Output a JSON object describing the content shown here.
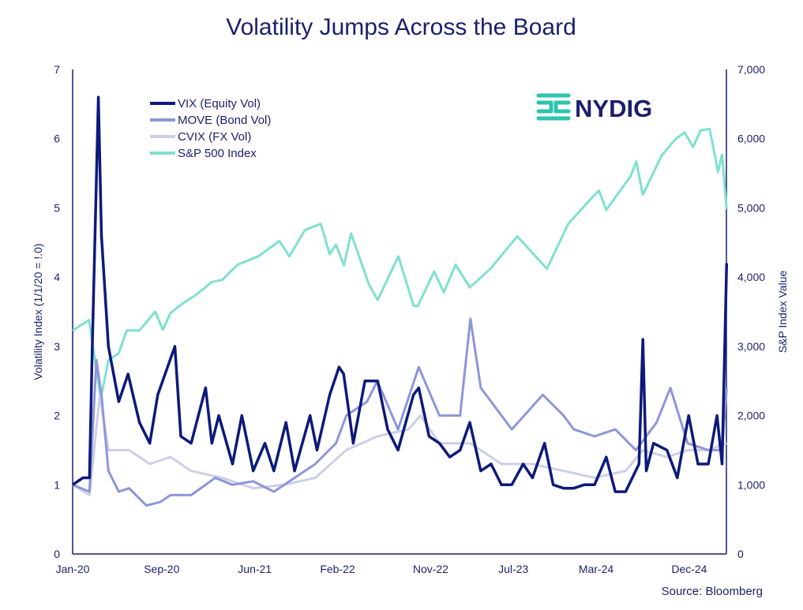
{
  "chart_data": {
    "type": "line",
    "title": "Volatility Jumps Across the Board",
    "ylabel": "Volatility Index  (1/1/20 = !.0)",
    "y2label": "S&P Index Value",
    "source": "Source: Bloomberg",
    "logo": "NYDIG",
    "ylim": [
      0,
      7
    ],
    "y2lim": [
      0,
      7000
    ],
    "yticks": [
      "0",
      "1",
      "2",
      "3",
      "4",
      "5",
      "6",
      "7"
    ],
    "y2ticks": [
      "0",
      "1,000",
      "2,000",
      "3,000",
      "4,000",
      "5,000",
      "6,000",
      "7,000"
    ],
    "xticks": [
      {
        "label": "Jan-20",
        "date": "2020-01"
      },
      {
        "label": "Sep-20",
        "date": "2020-09"
      },
      {
        "label": "Jun-21",
        "date": "2021-06"
      },
      {
        "label": "Feb-22",
        "date": "2022-02"
      },
      {
        "label": "Nov-22",
        "date": "2022-11"
      },
      {
        "label": "Jul-23",
        "date": "2023-07"
      },
      {
        "label": "Mar-24",
        "date": "2024-03"
      },
      {
        "label": "Dec-24",
        "date": "2024-12"
      }
    ],
    "grid": false,
    "legend": "top-left",
    "series": [
      {
        "name": "VIX (Equity Vol)",
        "axis": "left",
        "color": "#0d1a7a",
        "points": [
          [
            "2020-01-01",
            1.0
          ],
          [
            "2020-02-01",
            1.1
          ],
          [
            "2020-02-20",
            1.1
          ],
          [
            "2020-02-28",
            2.9
          ],
          [
            "2020-03-16",
            6.6
          ],
          [
            "2020-03-25",
            4.6
          ],
          [
            "2020-04-15",
            3.0
          ],
          [
            "2020-05-15",
            2.2
          ],
          [
            "2020-06-12",
            2.6
          ],
          [
            "2020-07-15",
            1.9
          ],
          [
            "2020-08-15",
            1.6
          ],
          [
            "2020-09-08",
            2.3
          ],
          [
            "2020-10-28",
            3.0
          ],
          [
            "2020-11-15",
            1.7
          ],
          [
            "2020-12-15",
            1.6
          ],
          [
            "2021-01-27",
            2.4
          ],
          [
            "2021-02-15",
            1.6
          ],
          [
            "2021-03-05",
            2.0
          ],
          [
            "2021-04-15",
            1.3
          ],
          [
            "2021-05-12",
            2.0
          ],
          [
            "2021-06-15",
            1.2
          ],
          [
            "2021-07-19",
            1.6
          ],
          [
            "2021-08-15",
            1.2
          ],
          [
            "2021-09-20",
            1.9
          ],
          [
            "2021-10-15",
            1.2
          ],
          [
            "2021-11-30",
            2.0
          ],
          [
            "2021-12-20",
            1.5
          ],
          [
            "2022-01-27",
            2.3
          ],
          [
            "2022-02-24",
            2.7
          ],
          [
            "2022-03-07",
            2.6
          ],
          [
            "2022-04-05",
            1.6
          ],
          [
            "2022-05-09",
            2.5
          ],
          [
            "2022-06-16",
            2.5
          ],
          [
            "2022-07-15",
            1.8
          ],
          [
            "2022-08-15",
            1.5
          ],
          [
            "2022-09-30",
            2.3
          ],
          [
            "2022-10-15",
            2.4
          ],
          [
            "2022-11-15",
            1.7
          ],
          [
            "2022-12-15",
            1.6
          ],
          [
            "2023-01-15",
            1.4
          ],
          [
            "2023-02-15",
            1.5
          ],
          [
            "2023-03-13",
            1.9
          ],
          [
            "2023-04-15",
            1.2
          ],
          [
            "2023-05-15",
            1.3
          ],
          [
            "2023-06-15",
            1.0
          ],
          [
            "2023-07-15",
            1.0
          ],
          [
            "2023-08-18",
            1.3
          ],
          [
            "2023-09-15",
            1.1
          ],
          [
            "2023-10-20",
            1.6
          ],
          [
            "2023-11-15",
            1.0
          ],
          [
            "2023-12-15",
            0.95
          ],
          [
            "2024-01-15",
            0.95
          ],
          [
            "2024-02-15",
            1.0
          ],
          [
            "2024-03-15",
            1.0
          ],
          [
            "2024-04-19",
            1.4
          ],
          [
            "2024-05-15",
            0.9
          ],
          [
            "2024-06-15",
            0.9
          ],
          [
            "2024-07-24",
            1.3
          ],
          [
            "2024-08-05",
            3.1
          ],
          [
            "2024-08-15",
            1.2
          ],
          [
            "2024-09-06",
            1.6
          ],
          [
            "2024-10-15",
            1.5
          ],
          [
            "2024-11-15",
            1.1
          ],
          [
            "2024-12-18",
            2.0
          ],
          [
            "2025-01-15",
            1.3
          ],
          [
            "2025-02-15",
            1.3
          ],
          [
            "2025-03-10",
            2.0
          ],
          [
            "2025-03-25",
            1.3
          ],
          [
            "2025-04-08",
            4.2
          ]
        ]
      },
      {
        "name": "MOVE (Bond Vol)",
        "axis": "left",
        "color": "#8e96d8",
        "points": [
          [
            "2020-01-01",
            1.0
          ],
          [
            "2020-02-20",
            0.9
          ],
          [
            "2020-03-10",
            2.8
          ],
          [
            "2020-03-25",
            2.3
          ],
          [
            "2020-04-15",
            1.2
          ],
          [
            "2020-05-15",
            0.9
          ],
          [
            "2020-06-15",
            0.95
          ],
          [
            "2020-08-05",
            0.7
          ],
          [
            "2020-09-15",
            0.75
          ],
          [
            "2020-10-15",
            0.85
          ],
          [
            "2020-12-15",
            0.85
          ],
          [
            "2021-02-25",
            1.1
          ],
          [
            "2021-04-15",
            1.0
          ],
          [
            "2021-06-15",
            1.05
          ],
          [
            "2021-08-15",
            0.9
          ],
          [
            "2021-10-15",
            1.1
          ],
          [
            "2021-12-15",
            1.3
          ],
          [
            "2022-02-15",
            1.6
          ],
          [
            "2022-03-15",
            2.0
          ],
          [
            "2022-05-15",
            2.2
          ],
          [
            "2022-06-15",
            2.5
          ],
          [
            "2022-08-15",
            1.8
          ],
          [
            "2022-10-15",
            2.7
          ],
          [
            "2022-12-15",
            2.0
          ],
          [
            "2023-02-15",
            2.0
          ],
          [
            "2023-03-15",
            3.4
          ],
          [
            "2023-04-15",
            2.4
          ],
          [
            "2023-05-15",
            2.2
          ],
          [
            "2023-07-15",
            1.8
          ],
          [
            "2023-10-15",
            2.3
          ],
          [
            "2023-12-15",
            2.0
          ],
          [
            "2024-01-15",
            1.8
          ],
          [
            "2024-03-15",
            1.7
          ],
          [
            "2024-05-15",
            1.8
          ],
          [
            "2024-07-15",
            1.5
          ],
          [
            "2024-09-15",
            1.9
          ],
          [
            "2024-10-25",
            2.4
          ],
          [
            "2024-12-15",
            1.6
          ],
          [
            "2025-02-15",
            1.5
          ],
          [
            "2025-03-25",
            1.5
          ],
          [
            "2025-04-08",
            2.4
          ]
        ]
      },
      {
        "name": "CVIX (FX Vol)",
        "axis": "left",
        "color": "#ccd0e6",
        "points": [
          [
            "2020-01-01",
            1.0
          ],
          [
            "2020-02-20",
            0.85
          ],
          [
            "2020-03-20",
            2.3
          ],
          [
            "2020-04-15",
            1.5
          ],
          [
            "2020-06-15",
            1.5
          ],
          [
            "2020-08-15",
            1.3
          ],
          [
            "2020-10-15",
            1.4
          ],
          [
            "2020-12-15",
            1.2
          ],
          [
            "2021-03-15",
            1.1
          ],
          [
            "2021-06-15",
            0.95
          ],
          [
            "2021-09-15",
            1.0
          ],
          [
            "2021-12-15",
            1.1
          ],
          [
            "2022-03-15",
            1.5
          ],
          [
            "2022-06-15",
            1.7
          ],
          [
            "2022-09-15",
            1.8
          ],
          [
            "2022-10-20",
            2.0
          ],
          [
            "2022-12-15",
            1.6
          ],
          [
            "2023-03-15",
            1.6
          ],
          [
            "2023-06-15",
            1.3
          ],
          [
            "2023-09-15",
            1.3
          ],
          [
            "2023-12-15",
            1.2
          ],
          [
            "2024-03-15",
            1.1
          ],
          [
            "2024-06-15",
            1.2
          ],
          [
            "2024-08-05",
            1.5
          ],
          [
            "2024-10-15",
            1.4
          ],
          [
            "2024-12-15",
            1.5
          ],
          [
            "2025-02-15",
            1.5
          ],
          [
            "2025-04-08",
            1.6
          ]
        ]
      },
      {
        "name": "S&P 500 Index",
        "axis": "right",
        "color": "#7fe0d0",
        "points": [
          [
            "2020-01-01",
            3230
          ],
          [
            "2020-02-19",
            3380
          ],
          [
            "2020-03-23",
            2240
          ],
          [
            "2020-04-15",
            2800
          ],
          [
            "2020-05-15",
            2900
          ],
          [
            "2020-06-08",
            3230
          ],
          [
            "2020-07-15",
            3230
          ],
          [
            "2020-08-31",
            3500
          ],
          [
            "2020-09-23",
            3240
          ],
          [
            "2020-10-15",
            3480
          ],
          [
            "2020-11-15",
            3600
          ],
          [
            "2020-12-31",
            3750
          ],
          [
            "2021-02-15",
            3930
          ],
          [
            "2021-03-15",
            3960
          ],
          [
            "2021-04-30",
            4180
          ],
          [
            "2021-06-30",
            4300
          ],
          [
            "2021-08-31",
            4520
          ],
          [
            "2021-09-30",
            4300
          ],
          [
            "2021-11-15",
            4680
          ],
          [
            "2021-12-31",
            4770
          ],
          [
            "2022-01-27",
            4330
          ],
          [
            "2022-02-15",
            4470
          ],
          [
            "2022-03-08",
            4170
          ],
          [
            "2022-03-29",
            4630
          ],
          [
            "2022-05-20",
            3900
          ],
          [
            "2022-06-16",
            3670
          ],
          [
            "2022-08-16",
            4300
          ],
          [
            "2022-09-30",
            3590
          ],
          [
            "2022-10-12",
            3580
          ],
          [
            "2022-11-30",
            4080
          ],
          [
            "2022-12-28",
            3780
          ],
          [
            "2023-02-02",
            4180
          ],
          [
            "2023-03-13",
            3850
          ],
          [
            "2023-05-15",
            4130
          ],
          [
            "2023-07-31",
            4590
          ],
          [
            "2023-10-27",
            4120
          ],
          [
            "2023-12-29",
            4770
          ],
          [
            "2024-02-29",
            5100
          ],
          [
            "2024-03-28",
            5250
          ],
          [
            "2024-04-19",
            4970
          ],
          [
            "2024-06-30",
            5460
          ],
          [
            "2024-07-16",
            5670
          ],
          [
            "2024-08-05",
            5190
          ],
          [
            "2024-09-30",
            5760
          ],
          [
            "2024-11-11",
            6000
          ],
          [
            "2024-12-06",
            6090
          ],
          [
            "2024-12-31",
            5880
          ],
          [
            "2025-01-23",
            6120
          ],
          [
            "2025-02-19",
            6140
          ],
          [
            "2025-03-13",
            5520
          ],
          [
            "2025-03-25",
            5770
          ],
          [
            "2025-04-08",
            4980
          ]
        ]
      }
    ]
  }
}
